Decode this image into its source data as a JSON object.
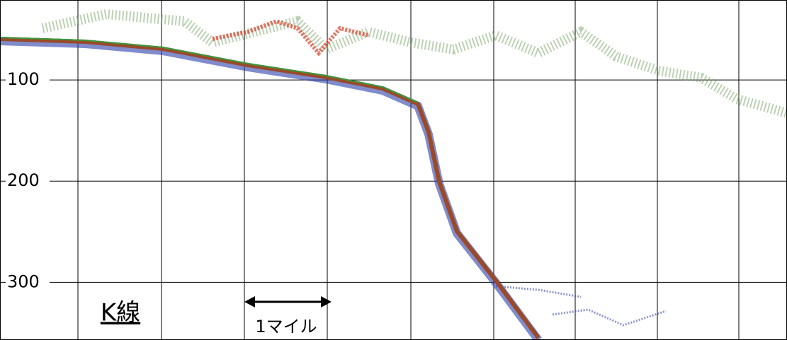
{
  "chart_data": {
    "type": "echogram",
    "ylim": [
      21,
      357
    ],
    "yticks": [
      100,
      200,
      300
    ],
    "grid": true,
    "y_inverted": true,
    "annotations": [
      "K線",
      "1マイル"
    ]
  }
}
